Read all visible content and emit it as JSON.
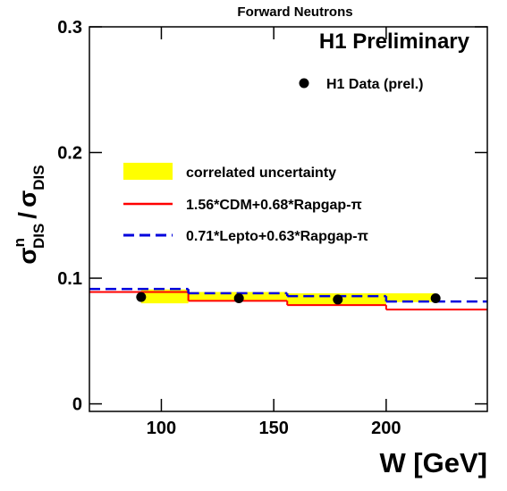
{
  "chart_data": {
    "type": "step",
    "title": "Forward Neutrons",
    "annotation": "H1 Preliminary",
    "x_label": "W [GeV]",
    "y_label": {
      "main": "σ",
      "sup": "n",
      "sub": "DIS",
      "slash": "/",
      "denominator": "σ",
      "sub2": "DIS"
    },
    "xlim": [
      68,
      245
    ],
    "xticks": [
      100,
      150,
      200
    ],
    "ylim": [
      -0.006,
      0.3
    ],
    "yticks": [
      0,
      0.1,
      0.2,
      0.3
    ],
    "data": {
      "name": "H1 Data (prel.)",
      "color": "#000000",
      "x": [
        91,
        134.5,
        178.5,
        222
      ],
      "values": [
        0.085,
        0.084,
        0.083,
        0.084
      ]
    },
    "band": {
      "name": "correlated uncertainty",
      "color": "#ffff00",
      "bins": [
        91,
        112,
        156,
        200,
        222
      ],
      "low": [
        0.08,
        0.082,
        0.079,
        0.081
      ],
      "high": [
        0.091,
        0.089,
        0.088,
        0.088
      ]
    },
    "series": [
      {
        "name": "1.56*CDM+0.68*Rapgap-π",
        "color": "#ff0000",
        "dash": false,
        "bins": [
          68,
          112,
          156,
          200,
          245
        ],
        "values": [
          0.089,
          0.082,
          0.0786,
          0.075
        ]
      },
      {
        "name": "0.71*Lepto+0.63*Rapgap-π",
        "color": "#0000dd",
        "dash": true,
        "bins": [
          68,
          112,
          156,
          200,
          245
        ],
        "values": [
          0.0914,
          0.088,
          0.0857,
          0.0814
        ]
      }
    ]
  }
}
